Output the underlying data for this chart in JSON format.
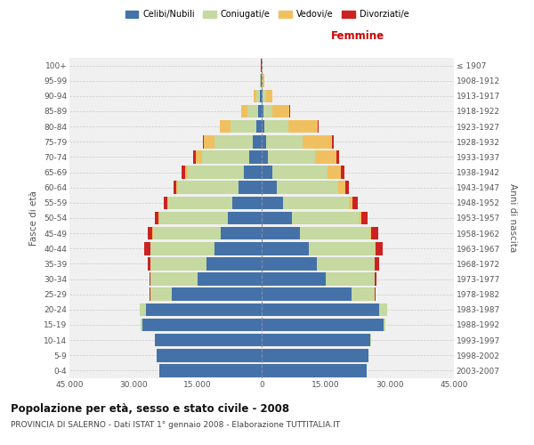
{
  "age_groups": [
    "0-4",
    "5-9",
    "10-14",
    "15-19",
    "20-24",
    "25-29",
    "30-34",
    "35-39",
    "40-44",
    "45-49",
    "50-54",
    "55-59",
    "60-64",
    "65-69",
    "70-74",
    "75-79",
    "80-84",
    "85-89",
    "90-94",
    "95-99",
    "100+"
  ],
  "birth_years": [
    "2003-2007",
    "1998-2002",
    "1993-1997",
    "1988-1992",
    "1983-1987",
    "1978-1982",
    "1973-1977",
    "1968-1972",
    "1963-1967",
    "1958-1962",
    "1953-1957",
    "1948-1952",
    "1943-1947",
    "1938-1942",
    "1933-1937",
    "1928-1932",
    "1923-1927",
    "1918-1922",
    "1913-1917",
    "1908-1912",
    "≤ 1907"
  ],
  "male_celibe": [
    24000,
    24500,
    25000,
    28000,
    27000,
    21000,
    15000,
    13000,
    11000,
    9500,
    8000,
    6800,
    5500,
    4200,
    3000,
    2000,
    1200,
    800,
    400,
    150,
    50
  ],
  "male_coniugato": [
    10,
    20,
    50,
    300,
    1500,
    5000,
    11000,
    13000,
    15000,
    16000,
    16000,
    15000,
    14000,
    13000,
    11000,
    9000,
    6000,
    2500,
    900,
    200,
    30
  ],
  "male_vedovo": [
    0,
    0,
    0,
    1,
    2,
    3,
    5,
    10,
    30,
    50,
    100,
    200,
    400,
    800,
    1500,
    2500,
    2500,
    1500,
    600,
    100,
    20
  ],
  "male_divorziato": [
    1,
    2,
    5,
    30,
    80,
    150,
    300,
    700,
    1400,
    1200,
    1000,
    900,
    800,
    700,
    500,
    200,
    100,
    80,
    50,
    20,
    5
  ],
  "female_celibe": [
    24500,
    25000,
    25500,
    28500,
    27500,
    21000,
    15000,
    13000,
    11000,
    9000,
    7000,
    5000,
    3500,
    2500,
    1500,
    1000,
    700,
    500,
    300,
    100,
    50
  ],
  "female_coniugata": [
    15,
    25,
    60,
    400,
    1800,
    5500,
    11500,
    13500,
    15500,
    16500,
    16000,
    15500,
    14500,
    13000,
    11000,
    8500,
    5500,
    2000,
    700,
    150,
    20
  ],
  "female_vedova": [
    0,
    0,
    1,
    2,
    5,
    10,
    20,
    50,
    100,
    200,
    400,
    800,
    1500,
    3000,
    5000,
    7000,
    7000,
    4000,
    1500,
    400,
    80
  ],
  "female_divorziata": [
    2,
    3,
    8,
    40,
    100,
    200,
    400,
    900,
    1800,
    1600,
    1400,
    1200,
    1000,
    800,
    600,
    300,
    150,
    100,
    60,
    20,
    5
  ],
  "colors": {
    "celibe": "#4472a8",
    "coniugato": "#c5d9a0",
    "vedovo": "#f0c060",
    "divorziato": "#cc2222"
  },
  "xlim": 45000,
  "xlabel_right": "Femmine",
  "ylabel": "Fasce di età",
  "ylabel_right": "Anni di nascita",
  "title": "Popolazione per età, sesso e stato civile - 2008",
  "subtitle": "PROVINCIA DI SALERNO - Dati ISTAT 1° gennaio 2008 - Elaborazione TUTTITALIA.IT",
  "legend_labels": [
    "Celibi/Nubili",
    "Coniugati/e",
    "Vedovi/e",
    "Divorziati/e"
  ],
  "background_color": "#ffffff",
  "bar_height": 0.85
}
